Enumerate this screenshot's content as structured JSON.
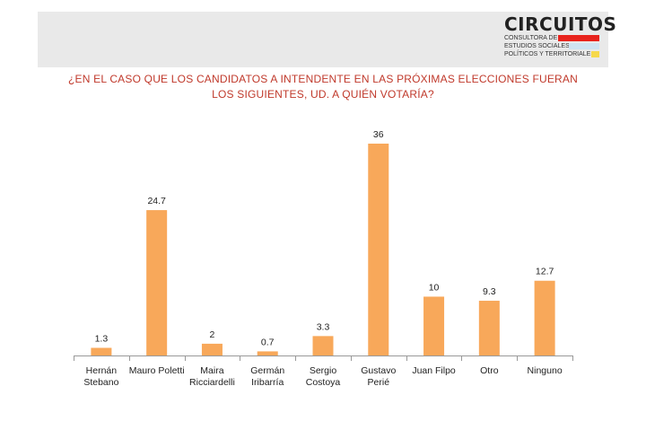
{
  "header": {
    "logo_title": "CIRCUITOS",
    "logo_line1": "CONSULTORA DE",
    "logo_line2": "ESTUDIOS SOCIALES,",
    "logo_line3": "POLÍTICOS Y TERRITORIALES",
    "accent_red": "#e8231d",
    "accent_blue": "#cfe3f2",
    "accent_yellow": "#f6d94a"
  },
  "chart_data": {
    "type": "bar",
    "title_lines": [
      "¿EN EL CASO QUE LOS CANDIDATOS A INTENDENTE EN LAS PRÓXIMAS ELECCIONES FUERAN",
      "LOS SIGUIENTES, UD. A QUIÉN VOTARÍA?"
    ],
    "categories": [
      [
        "Hernán",
        "Stebano"
      ],
      [
        "Mauro Poletti"
      ],
      [
        "Maira",
        "Ricciardelli"
      ],
      [
        "Germán",
        "Iribarría"
      ],
      [
        "Sergio",
        "Costoya"
      ],
      [
        "Gustavo",
        "Perié"
      ],
      [
        "Juan Filpo"
      ],
      [
        "Otro"
      ],
      [
        "Ninguno"
      ]
    ],
    "values": [
      1.3,
      24.7,
      2,
      0.7,
      3.3,
      36,
      10,
      9.3,
      12.7
    ],
    "value_labels": [
      "1.3",
      "24.7",
      "2",
      "0.7",
      "3.3",
      "36",
      "10",
      "9.3",
      "12.7"
    ],
    "ylim": [
      0,
      36
    ],
    "bar_color": "#f8a85a",
    "xlabel": "",
    "ylabel": ""
  }
}
